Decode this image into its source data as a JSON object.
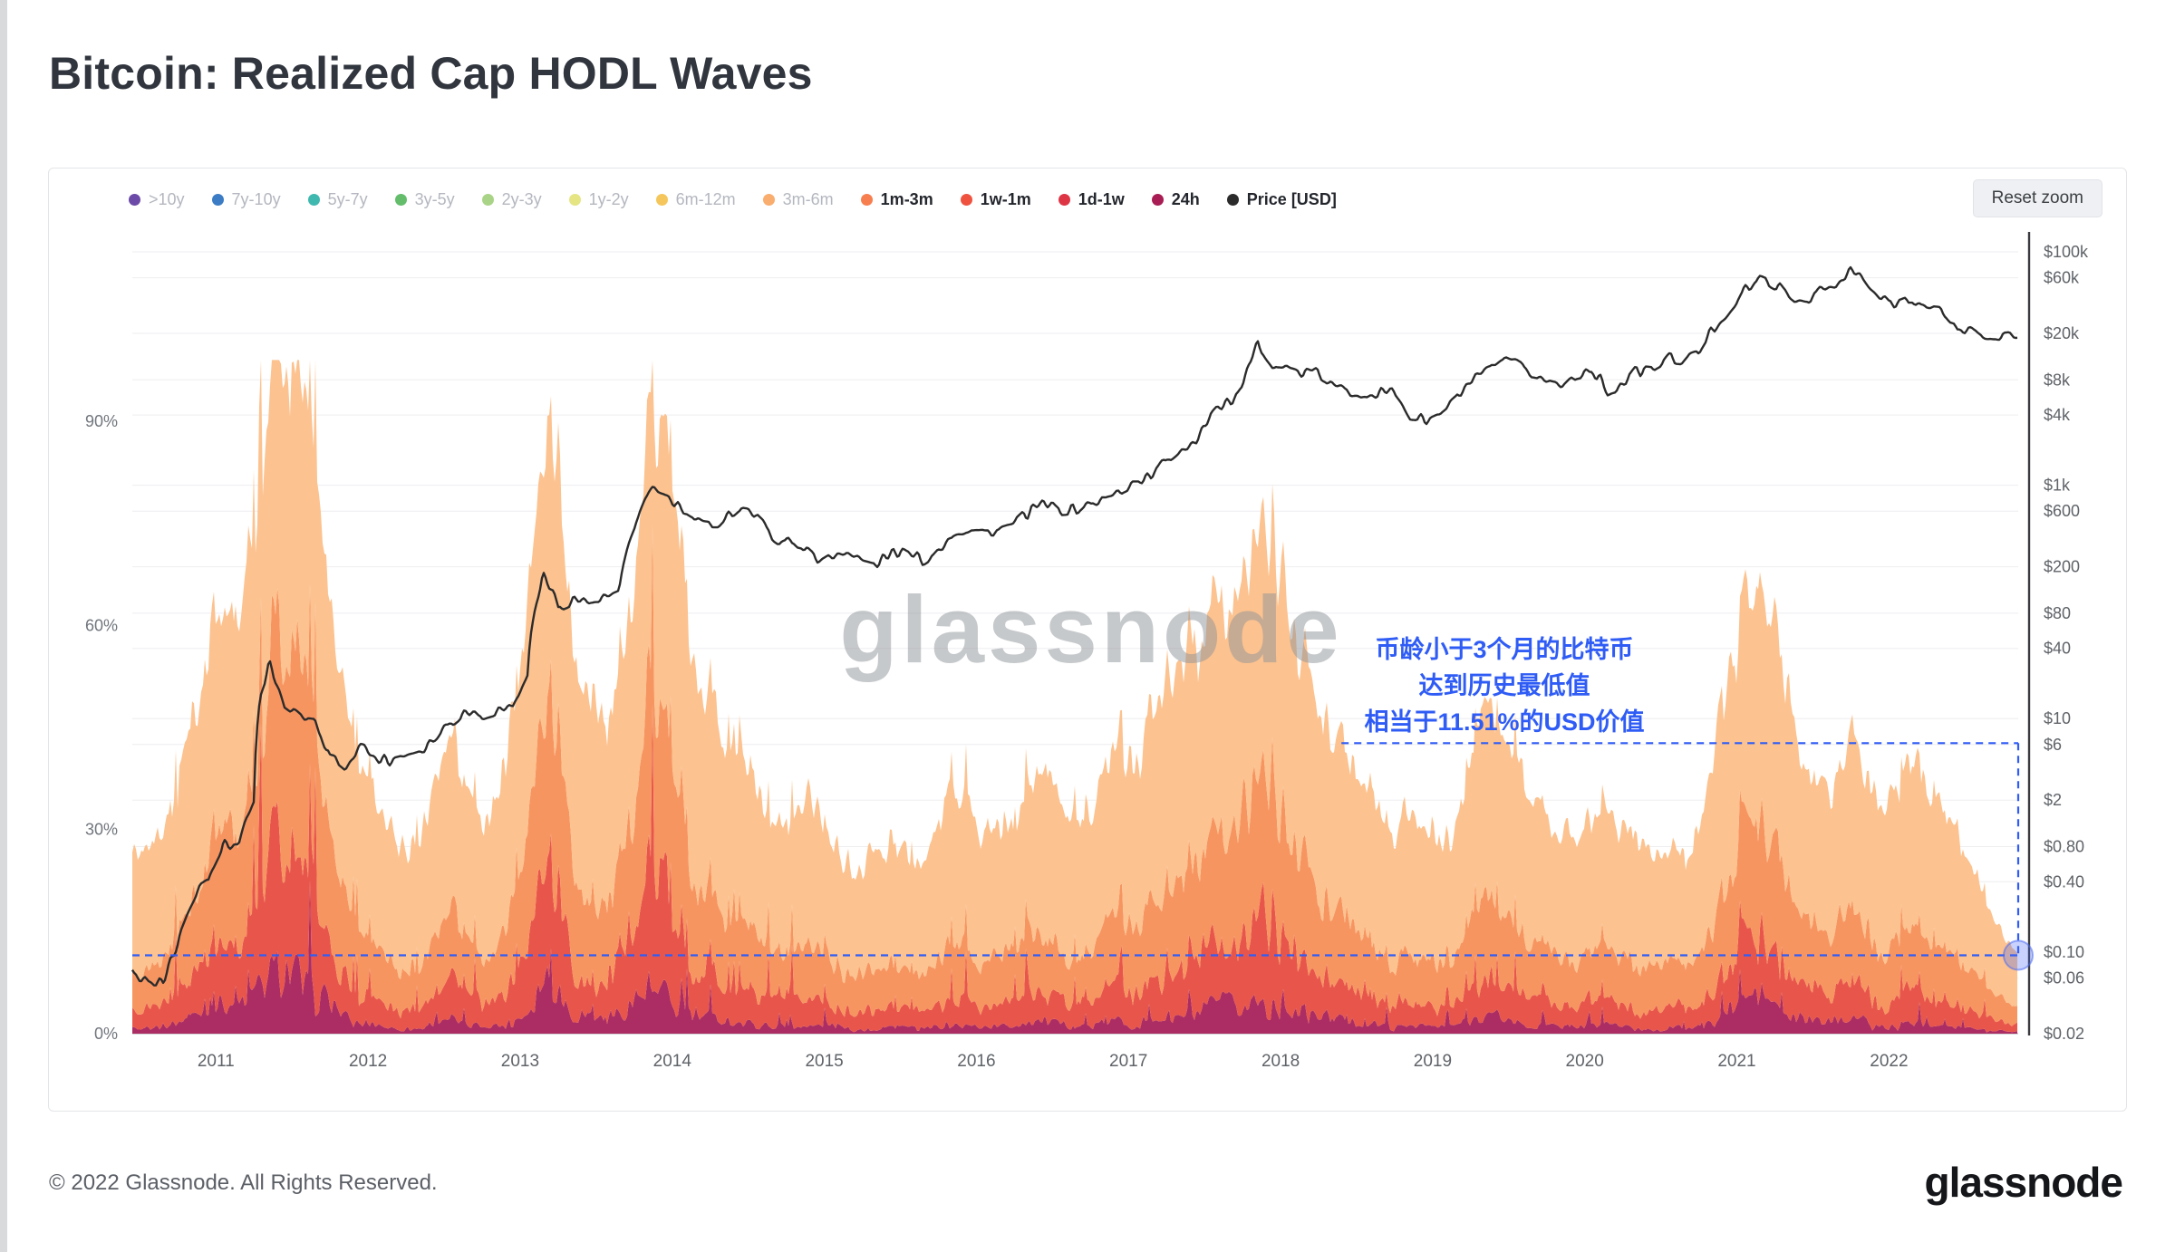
{
  "page": {
    "title": "Bitcoin: Realized Cap HODL Waves",
    "reset_zoom_label": "Reset zoom",
    "watermark": "glassnode",
    "footer_copyright": "© 2022 Glassnode. All Rights Reserved.",
    "brand_logo": "glassnode"
  },
  "legend": {
    "items": [
      {
        "label": ">10y",
        "color": "#6b4aa8",
        "active": false
      },
      {
        "label": "7y-10y",
        "color": "#3b7cc4",
        "active": false
      },
      {
        "label": "5y-7y",
        "color": "#3fb8af",
        "active": false
      },
      {
        "label": "3y-5y",
        "color": "#63bd6b",
        "active": false
      },
      {
        "label": "2y-3y",
        "color": "#a9d487",
        "active": false
      },
      {
        "label": "1y-2y",
        "color": "#e5e584",
        "active": false
      },
      {
        "label": "6m-12m",
        "color": "#f5c65b",
        "active": false
      },
      {
        "label": "3m-6m",
        "color": "#f9ad6e",
        "active": false
      },
      {
        "label": "1m-3m",
        "color": "#f77f4f",
        "active": true
      },
      {
        "label": "1w-1m",
        "color": "#ef5340",
        "active": true
      },
      {
        "label": "1d-1w",
        "color": "#de3545",
        "active": true
      },
      {
        "label": "24h",
        "color": "#a81d53",
        "active": true
      },
      {
        "label": "Price [USD]",
        "color": "#2b2b2b",
        "active": true
      }
    ]
  },
  "chart_data": {
    "type": "area",
    "stacked": true,
    "grid": true,
    "x_start": 2010.45,
    "x_step": 0.1,
    "x_ticks": [
      2011,
      2012,
      2013,
      2014,
      2015,
      2016,
      2017,
      2018,
      2019,
      2020,
      2021,
      2022
    ],
    "percent_axis": {
      "side": "left",
      "max": 100,
      "ticks": [
        {
          "v": 0,
          "label": "0%"
        },
        {
          "v": 30,
          "label": "30%"
        },
        {
          "v": 60,
          "label": "60%"
        },
        {
          "v": 90,
          "label": "90%"
        }
      ]
    },
    "price_axis": {
      "side": "right",
      "scale": "log",
      "ticks": [
        {
          "v": 100000,
          "label": "$100k"
        },
        {
          "v": 60000,
          "label": "$60k"
        },
        {
          "v": 20000,
          "label": "$20k"
        },
        {
          "v": 8000,
          "label": "$8k"
        },
        {
          "v": 4000,
          "label": "$4k"
        },
        {
          "v": 1000,
          "label": "$1k"
        },
        {
          "v": 600,
          "label": "$600"
        },
        {
          "v": 200,
          "label": "$200"
        },
        {
          "v": 80,
          "label": "$80"
        },
        {
          "v": 40,
          "label": "$40"
        },
        {
          "v": 10,
          "label": "$10"
        },
        {
          "v": 6,
          "label": "$6"
        },
        {
          "v": 2,
          "label": "$2"
        },
        {
          "v": 0.8,
          "label": "$0.80"
        },
        {
          "v": 0.4,
          "label": "$0.40"
        },
        {
          "v": 0.1,
          "label": "$0.10"
        },
        {
          "v": 0.06,
          "label": "$0.06"
        },
        {
          "v": 0.02,
          "label": "$0.02"
        }
      ]
    },
    "series": [
      {
        "name": "24h",
        "color": "#ab2d63",
        "values": [
          0.8,
          0.9,
          1.0,
          1.3,
          2.1,
          3.1,
          3.8,
          3.4,
          4.8,
          7.4,
          8.6,
          8.3,
          6.2,
          3.8,
          2.6,
          1.6,
          1.2,
          0.9,
          0.9,
          1.0,
          1.6,
          2.1,
          1.4,
          1.0,
          1.3,
          2.1,
          3.6,
          7.4,
          6.2,
          3.6,
          2.6,
          2.1,
          2.8,
          4.8,
          7.7,
          6.9,
          4.8,
          3.1,
          2.4,
          1.9,
          2.1,
          1.6,
          1.2,
          1.0,
          1.2,
          1.4,
          1.0,
          0.8,
          0.8,
          0.8,
          0.9,
          0.9,
          0.8,
          1.0,
          1.4,
          1.2,
          1.0,
          1.1,
          1.2,
          1.6,
          1.7,
          1.3,
          1.2,
          1.3,
          1.6,
          1.9,
          2.0,
          2.2,
          2.6,
          3.4,
          3.2,
          3.8,
          3.6,
          4.3,
          6.5,
          5.9,
          4.2,
          3.1,
          2.4,
          2.0,
          1.7,
          1.4,
          1.2,
          1.0,
          1.3,
          1.0,
          0.9,
          1.2,
          1.7,
          2.3,
          2.1,
          1.7,
          1.4,
          1.2,
          0.9,
          0.9,
          1.0,
          1.3,
          1.0,
          0.9,
          0.8,
          0.9,
          0.8,
          1.0,
          1.7,
          3.1,
          4.2,
          4.8,
          3.8,
          2.6,
          1.7,
          1.4,
          1.6,
          2.1,
          1.7,
          1.3,
          1.4,
          1.7,
          1.4,
          1.2,
          1.0,
          0.7,
          0.6,
          0.4,
          0.3
        ]
      },
      {
        "name": "1d-1w",
        "color": "#e8564b",
        "values": [
          2.6,
          2.9,
          3.2,
          3.7,
          5.5,
          7.4,
          8.8,
          8.0,
          10.6,
          15.1,
          17.1,
          16.5,
          13.0,
          8.8,
          6.4,
          4.4,
          3.5,
          2.9,
          2.8,
          3.2,
          4.4,
          5.5,
          4.1,
          3.2,
          3.7,
          5.5,
          8.4,
          15.1,
          13.0,
          8.4,
          6.4,
          5.5,
          6.8,
          10.6,
          15.7,
          14.3,
          10.6,
          7.4,
          6.1,
          5.0,
          5.5,
          4.4,
          3.6,
          3.2,
          3.5,
          3.9,
          3.2,
          2.6,
          2.5,
          2.6,
          2.9,
          2.8,
          2.6,
          3.2,
          4.1,
          3.5,
          3.2,
          3.3,
          3.6,
          4.4,
          4.7,
          3.7,
          3.5,
          3.7,
          4.4,
          5.0,
          5.4,
          5.7,
          6.4,
          8.0,
          7.6,
          8.8,
          8.4,
          9.7,
          13.5,
          12.5,
          9.5,
          7.4,
          6.1,
          5.4,
          4.7,
          4.1,
          3.5,
          3.2,
          3.7,
          3.2,
          2.9,
          3.5,
          4.7,
          5.9,
          5.5,
          4.7,
          3.9,
          3.5,
          2.9,
          2.9,
          3.2,
          3.7,
          3.2,
          2.9,
          2.6,
          2.9,
          2.6,
          3.2,
          4.7,
          7.4,
          9.5,
          10.6,
          8.8,
          6.4,
          4.7,
          4.1,
          4.4,
          5.5,
          4.7,
          3.7,
          4.1,
          4.7,
          4.1,
          3.5,
          3.2,
          2.4,
          1.9,
          1.4,
          1.2
        ]
      },
      {
        "name": "1w-1m",
        "color": "#f79561",
        "values": [
          5.7,
          6.3,
          6.8,
          7.8,
          10.9,
          14.0,
          16.3,
          14.9,
          19.0,
          25.7,
          28.5,
          27.7,
          22.6,
          16.3,
          12.4,
          8.9,
          7.3,
          6.3,
          6.0,
          6.8,
          8.9,
          10.9,
          8.4,
          6.8,
          7.8,
          10.9,
          15.6,
          25.7,
          22.6,
          15.6,
          12.4,
          10.9,
          13.1,
          19.0,
          26.5,
          24.5,
          19.0,
          14.0,
          11.8,
          10.1,
          10.9,
          8.9,
          7.6,
          6.8,
          7.3,
          8.1,
          6.8,
          5.7,
          5.5,
          5.7,
          6.3,
          6.0,
          5.7,
          6.8,
          8.4,
          7.3,
          6.8,
          7.0,
          7.6,
          8.9,
          9.5,
          7.8,
          7.3,
          7.8,
          8.9,
          10.1,
          10.6,
          11.2,
          12.4,
          14.9,
          14.3,
          16.3,
          15.6,
          17.6,
          23.4,
          21.9,
          17.3,
          14.0,
          11.8,
          10.6,
          9.5,
          8.4,
          7.3,
          6.8,
          7.8,
          6.8,
          6.3,
          7.3,
          9.5,
          11.5,
          10.9,
          9.5,
          8.1,
          7.3,
          6.3,
          6.3,
          6.8,
          7.8,
          6.8,
          6.3,
          5.7,
          6.3,
          5.7,
          6.8,
          9.5,
          14.0,
          17.3,
          19.0,
          16.3,
          12.4,
          9.5,
          8.4,
          8.9,
          10.9,
          9.5,
          7.8,
          8.4,
          9.5,
          8.4,
          7.3,
          6.8,
          5.3,
          4.2,
          3.1,
          2.5
        ]
      },
      {
        "name": "1m-3m",
        "color": "#fcc28f",
        "values": [
          16.9,
          17.9,
          19.0,
          21.2,
          26.5,
          30.5,
          33.1,
          31.7,
          35.6,
          39.8,
          40.8,
          40.5,
          38.2,
          33.1,
          28.6,
          23.1,
          20.0,
          17.9,
          17.3,
          19.0,
          23.1,
          26.5,
          22.1,
          19.0,
          21.2,
          26.5,
          32.4,
          39.8,
          38.2,
          32.4,
          28.6,
          26.5,
          29.3,
          35.6,
          40.1,
          39.3,
          35.6,
          30.5,
          27.7,
          25.0,
          26.5,
          23.1,
          20.6,
          19.0,
          20.0,
          21.6,
          19.0,
          16.9,
          16.2,
          16.9,
          17.9,
          17.3,
          16.9,
          19.0,
          22.1,
          20.0,
          19.0,
          19.6,
          20.6,
          23.1,
          24.1,
          21.2,
          20.0,
          21.2,
          23.1,
          25.0,
          26.0,
          26.9,
          28.6,
          31.7,
          30.9,
          33.1,
          32.4,
          34.4,
          38.6,
          37.7,
          34.0,
          30.5,
          27.7,
          26.0,
          24.1,
          22.1,
          20.0,
          19.0,
          21.2,
          19.0,
          17.9,
          20.0,
          24.1,
          27.3,
          26.5,
          24.1,
          21.6,
          20.0,
          17.9,
          17.9,
          19.0,
          21.2,
          19.0,
          17.9,
          16.9,
          17.9,
          16.9,
          19.0,
          24.1,
          30.5,
          34.0,
          35.6,
          33.1,
          28.6,
          24.1,
          22.1,
          23.1,
          26.5,
          24.1,
          21.2,
          22.1,
          24.1,
          22.1,
          20.0,
          19.0,
          15.6,
          12.3,
          9.1,
          7.51
        ]
      }
    ],
    "price_series": {
      "name": "Price [USD]",
      "color": "#2b2b2b",
      "values": [
        0.07,
        0.06,
        0.06,
        0.12,
        0.25,
        0.42,
        0.9,
        0.85,
        1.9,
        30,
        14,
        11,
        9,
        4.5,
        3.5,
        5.8,
        4.9,
        4.6,
        5.0,
        5.4,
        6.8,
        9.5,
        11.5,
        11.0,
        13.0,
        14,
        25,
        180,
        95,
        110,
        95,
        105,
        135,
        420,
        1000,
        820,
        600,
        460,
        490,
        580,
        600,
        500,
        400,
        360,
        330,
        230,
        245,
        240,
        235,
        230,
        270,
        255,
        235,
        290,
        400,
        410,
        395,
        420,
        445,
        560,
        660,
        590,
        615,
        700,
        790,
        950,
        1100,
        1150,
        1700,
        2300,
        2600,
        4300,
        5300,
        7100,
        17000,
        11500,
        9500,
        8200,
        8800,
        7500,
        6700,
        7000,
        6500,
        6300,
        3900,
        3650,
        3900,
        4900,
        7200,
        9000,
        11200,
        10200,
        9000,
        8600,
        7300,
        8300,
        9300,
        6000,
        7200,
        9200,
        9200,
        11200,
        10700,
        13000,
        22000,
        34000,
        49000,
        58000,
        52000,
        35000,
        35500,
        45000,
        46000,
        63000,
        50000,
        42000,
        41000,
        45000,
        34000,
        30000,
        20500,
        22000,
        19500,
        19000,
        16800
      ]
    },
    "annotation": {
      "text_lines": [
        "币龄小于3个月的比特币",
        "达到历史最低值",
        "相当于11.51%的USD价值"
      ],
      "color": "#2f5cf5",
      "min_level_pct": 11.51,
      "upper_level_pct": 42.7,
      "upper_start_year": 2018.4
    }
  }
}
